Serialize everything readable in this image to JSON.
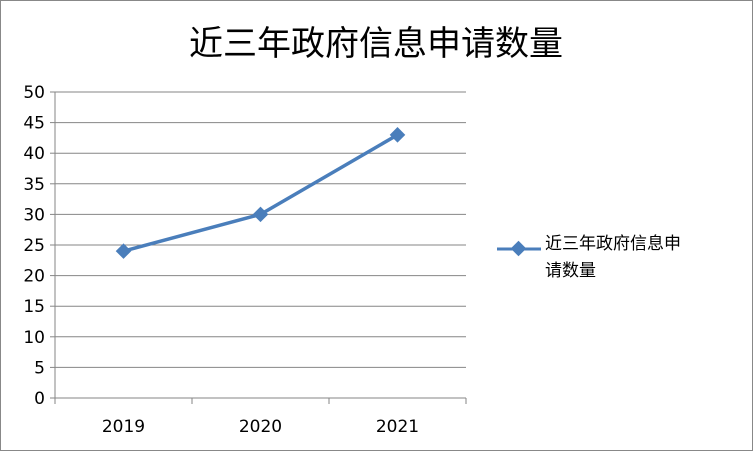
{
  "chart_data": {
    "type": "line",
    "title": "近三年政府信息申请数量",
    "categories": [
      "2019",
      "2020",
      "2021"
    ],
    "series": [
      {
        "name": "近三年政府信息申请数量",
        "values": [
          24,
          30,
          43
        ],
        "color": "#4a7ebb",
        "marker": "diamond"
      }
    ],
    "ylim": [
      0,
      50
    ],
    "yticks": [
      0,
      5,
      10,
      15,
      20,
      25,
      30,
      35,
      40,
      45,
      50
    ],
    "grid": true,
    "legend": "right",
    "xlabel": "",
    "ylabel": ""
  }
}
